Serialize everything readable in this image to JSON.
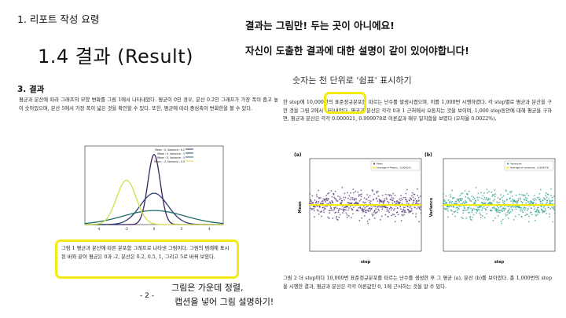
{
  "header": {
    "section_kicker": "1. 리포트 작성 요령",
    "title": "1.4 결과 (Result)"
  },
  "notes": {
    "top_line1": "결과는 그림만! 두는 곳이 아니에요!",
    "top_line2": "자신이 도출한 결과에 대한 설명이 같이 있어야합니다!",
    "digits": "숫자는 천 단위로 '쉼표' 표시하기",
    "bottom_line1": "그림은 가운데 정렬,",
    "bottom_line2": "캡션을 넣어 그림 설명하기!"
  },
  "left": {
    "heading": "3. 결과",
    "paragraph": "평균과 분산에 따라 그래프의 모양 변화를 그림 1에서 나타내었다. 평균이 0인 경우, 분산 0.2인 그래프가 가장 폭이 좁고 높이 솟아있으며, 분산 5에서 가장 폭이 넓은 것을 확인할 수 있다. 또한, 평균에 따라 중심축이 변화한을 볼 수 있다.",
    "caption": "그림 1 평균과 분산에 따른 분포함 그래프로 나타낸 그림이다. 그림의 범례에 표시된 바와 같이 평균은 0과 -2, 분산은 0.2, 0.5, 1, 그리고 5로 바꿔 보았다.",
    "legend": [
      "Mean : 0, Variance : 0.2",
      "Mean : 0, Variance : 1",
      "Mean : 0, Variance : 5",
      "Mean : -2, Variance : 0.5"
    ],
    "x_ticks": [
      "-4",
      "-2",
      "0",
      "2",
      "4"
    ]
  },
  "right": {
    "paragraph": "한 step에 10,000번의 표준정규분포를 따르는 난수를 발생시켰으며, 이를 1,000번 시행하였다. 각 step별로 평균과 분산을 구한 것을 그림 2에서 나타내었다. 평균과 분산은 각각 0과 1 근처에서 요동치는 것을 보이며, 1,000 step동안에 대해 평균을 구하면, 평균과 분산은 각각 0.000021, 0.999978로 이론값과 매우 일치함을 보였다 (오차율 0.0022%).",
    "caption": "그림 2 더 step마다 10,000번 표준정규분포를 따르는 난수를 생성한 후 그 평균 (a), 분산 (b)를 보이었다. 총 1,000번의 step을 시행한 결과, 평균과 분산은 각각 이론값인 0, 1에 근사하는 것을 알 수 있다.",
    "panel_a": {
      "tag": "(a)",
      "ylabel": "Mean",
      "xlabel": "step",
      "legend": [
        "Mean",
        "Average of Means : 0.000021"
      ]
    },
    "panel_b": {
      "tag": "(b)",
      "ylabel": "Variance",
      "xlabel": "step",
      "legend": [
        "Variances",
        "Average of variances : 0.999978"
      ]
    }
  },
  "footer": {
    "page_number": "- 2 -"
  },
  "colors": {
    "highlight": "#f2ea11",
    "mean_points": "#5a3a78",
    "variance_points": "#2e9f8a",
    "curve_narrow": "#3b1f5c",
    "curve_wide": "#2a3f72",
    "curve_shifted": "#d6db4a",
    "curve_mid": "#1e6e6a"
  },
  "chart_data": [
    {
      "type": "line",
      "title": "",
      "series": [
        {
          "name": "Mean : 0, Variance : 0.2",
          "mean": 0,
          "variance": 0.2
        },
        {
          "name": "Mean : 0, Variance : 1",
          "mean": 0,
          "variance": 1
        },
        {
          "name": "Mean : 0, Variance : 5",
          "mean": 0,
          "variance": 5
        },
        {
          "name": "Mean : -2, Variance : 0.5",
          "mean": -2,
          "variance": 0.5
        }
      ],
      "xlim": [
        -5,
        5
      ],
      "ylim": [
        0,
        1
      ]
    },
    {
      "type": "scatter",
      "xlabel": "step",
      "ylabel": "Mean",
      "xlim": [
        0,
        1000
      ],
      "ylim": [
        -0.06,
        0.06
      ],
      "average": 2.1e-05,
      "point_count": 1000
    },
    {
      "type": "scatter",
      "xlabel": "step",
      "ylabel": "Variance",
      "xlim": [
        0,
        1000
      ],
      "ylim": [
        0.94,
        1.06
      ],
      "average": 0.999978,
      "point_count": 1000
    }
  ]
}
